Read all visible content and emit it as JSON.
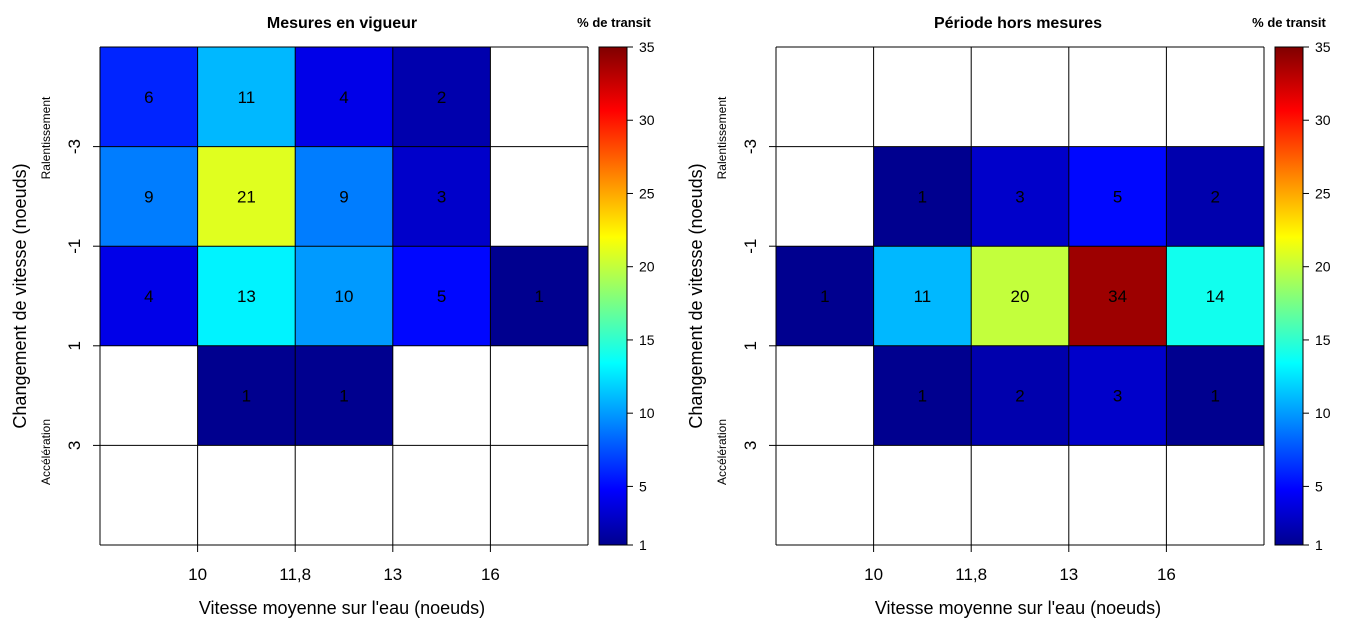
{
  "chart_data": [
    {
      "type": "heatmap",
      "title": "Mesures en vigueur",
      "colorbar_title": "% de transit",
      "xlabel": "Vitesse moyenne sur l'eau (noeuds)",
      "ylabel": "Changement de vitesse (noeuds)",
      "y_top_annotation": "Ralentissement",
      "y_bottom_annotation": "Accélération",
      "x_tick_labels": [
        "10",
        "11,8",
        "13",
        "16"
      ],
      "y_tick_labels": [
        "-3",
        "-1",
        "1",
        "3"
      ],
      "colorbar_ticks": [
        1,
        5,
        10,
        15,
        20,
        25,
        30,
        35
      ],
      "colorbar_range": [
        1,
        35
      ],
      "grid": true,
      "values": [
        [
          6,
          11,
          4,
          2,
          null
        ],
        [
          9,
          21,
          9,
          3,
          null
        ],
        [
          4,
          13,
          10,
          5,
          1
        ],
        [
          null,
          1,
          1,
          null,
          null
        ],
        [
          null,
          null,
          null,
          null,
          null
        ]
      ]
    },
    {
      "type": "heatmap",
      "title": "Période hors mesures",
      "colorbar_title": "% de transit",
      "xlabel": "Vitesse moyenne sur l'eau (noeuds)",
      "ylabel": "Changement de vitesse (noeuds)",
      "y_top_annotation": "Ralentissement",
      "y_bottom_annotation": "Accélération",
      "x_tick_labels": [
        "10",
        "11,8",
        "13",
        "16"
      ],
      "y_tick_labels": [
        "-3",
        "-1",
        "1",
        "3"
      ],
      "colorbar_ticks": [
        1,
        5,
        10,
        15,
        20,
        25,
        30,
        35
      ],
      "colorbar_range": [
        1,
        35
      ],
      "grid": true,
      "values": [
        [
          null,
          null,
          null,
          null,
          null
        ],
        [
          null,
          1,
          3,
          5,
          2
        ],
        [
          1,
          11,
          20,
          34,
          14
        ],
        [
          null,
          1,
          2,
          3,
          1
        ],
        [
          null,
          null,
          null,
          null,
          null
        ]
      ]
    }
  ]
}
